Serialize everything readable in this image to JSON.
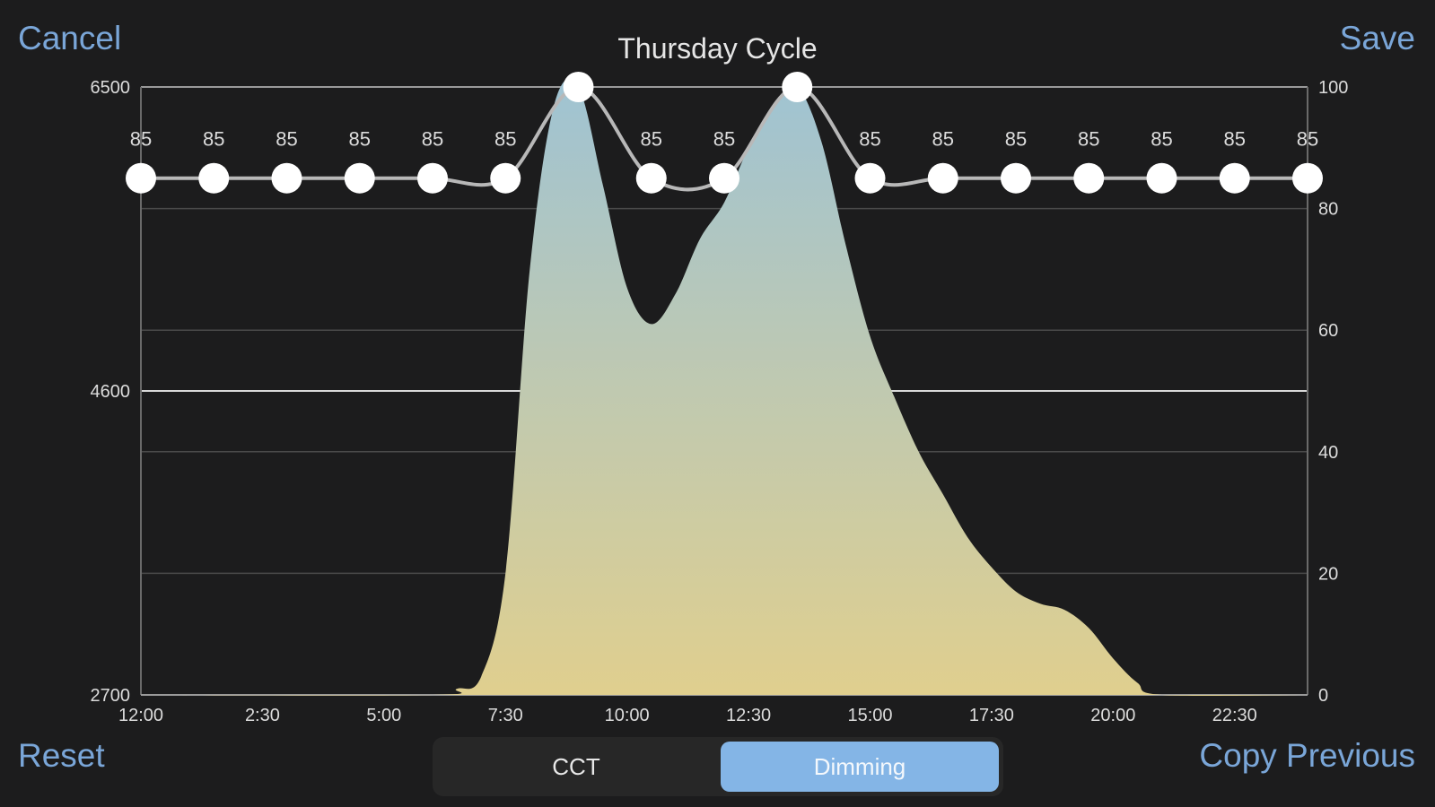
{
  "nav": {
    "cancel_label": "Cancel",
    "save_label": "Save",
    "reset_label": "Reset",
    "copy_previous_label": "Copy Previous"
  },
  "title": "Thursday Cycle",
  "segmented": {
    "options": [
      "CCT",
      "Dimming"
    ],
    "selected": "Dimming"
  },
  "colors": {
    "accent": "#7aa6d8",
    "selected_segment": "#84b5e6",
    "fill_top": "#9fc3d3",
    "fill_bottom": "#e0cf8e",
    "background": "#1c1c1d"
  },
  "chart_data": {
    "type": "area",
    "x_ticks": [
      "12:00",
      "2:30",
      "5:00",
      "7:30",
      "10:00",
      "12:30",
      "15:00",
      "17:30",
      "20:00",
      "22:30"
    ],
    "x_range_hours": [
      0,
      24
    ],
    "left_axis": {
      "ticks": [
        2700,
        4600,
        6500
      ],
      "range": [
        2700,
        6500
      ]
    },
    "right_axis": {
      "ticks": [
        0,
        20,
        40,
        60,
        80,
        100
      ],
      "range": [
        0,
        100
      ]
    },
    "grid": true,
    "control_points": {
      "x_hours": [
        0,
        1.5,
        3,
        4.5,
        6,
        7.5,
        9,
        10.5,
        12,
        13.5,
        15,
        16.5,
        18,
        19.5,
        21,
        22.5,
        24
      ],
      "values": [
        85,
        85,
        85,
        85,
        85,
        85,
        100,
        85,
        85,
        100,
        85,
        85,
        85,
        85,
        85,
        85,
        85
      ],
      "labels": [
        "85",
        "85",
        "85",
        "85",
        "85",
        "85",
        "",
        "85",
        "85",
        "",
        "85",
        "85",
        "85",
        "85",
        "85",
        "85",
        "85"
      ]
    },
    "area_series": {
      "x_hours": [
        0,
        6,
        6.5,
        7,
        7.5,
        8,
        8.5,
        9,
        9.5,
        10,
        10.5,
        11,
        11.5,
        12,
        12.5,
        13,
        13.5,
        14,
        14.5,
        15,
        15.5,
        16,
        16.5,
        17,
        17.5,
        18,
        18.5,
        19,
        19.5,
        20,
        20.5,
        21,
        24
      ],
      "values": [
        0,
        0,
        1,
        3,
        20,
        70,
        97,
        100,
        84,
        67,
        61,
        66,
        75,
        81,
        90,
        97,
        100,
        91,
        74,
        59,
        49,
        40,
        33,
        26,
        21,
        17,
        15,
        14,
        11,
        6,
        2,
        0,
        0
      ]
    }
  }
}
